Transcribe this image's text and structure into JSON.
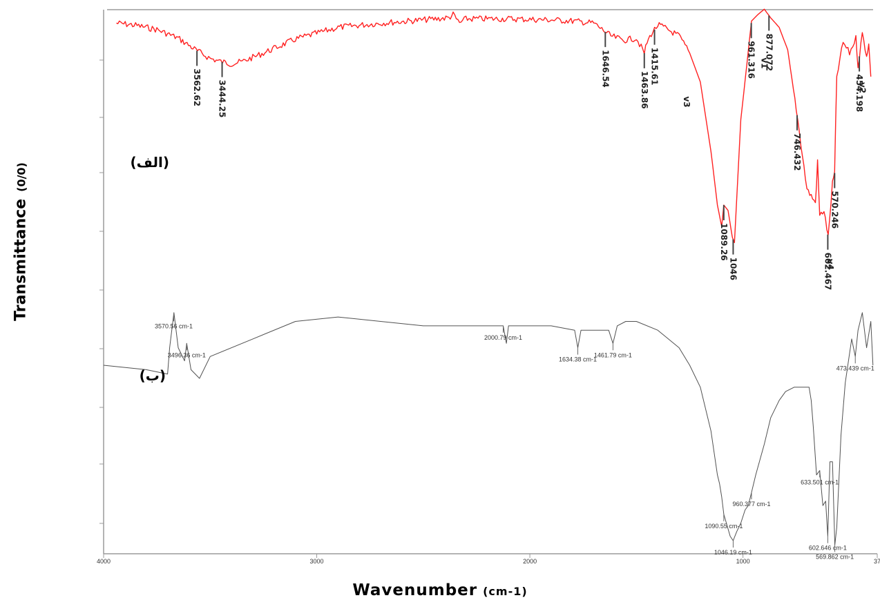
{
  "chart_data": {
    "type": "line",
    "xlabel": "Wavenumber",
    "xlabel_unit": "(cm-1)",
    "ylabel": "Transmittance",
    "ylabel_unit": "(0/0)",
    "x_reversed": true,
    "xlim": [
      4000,
      370
    ],
    "x_ticks": [
      "4000",
      "3000",
      "2000",
      "1000",
      "37"
    ],
    "series": [
      {
        "panel_label": "(الف)",
        "color": "#ff2020",
        "noisy": true,
        "x": [
          3940,
          3850,
          3750,
          3650,
          3560,
          3500,
          3450,
          3400,
          3350,
          3250,
          3100,
          2900,
          2700,
          2500,
          2380,
          2360,
          2330,
          2300,
          2100,
          1900,
          1800,
          1700,
          1647,
          1620,
          1560,
          1500,
          1463,
          1450,
          1430,
          1400,
          1380,
          1300,
          1250,
          1200,
          1150,
          1120,
          1100,
          1090,
          1070,
          1050,
          1040,
          1010,
          975,
          960,
          930,
          900,
          870,
          830,
          790,
          750,
          700,
          660,
          650,
          640,
          620,
          600,
          580,
          570,
          560,
          530,
          500,
          470,
          460,
          440,
          420,
          410,
          400
        ],
        "y": [
          10,
          12,
          16,
          24,
          36,
          43,
          46,
          48,
          46,
          38,
          25,
          14,
          10,
          7,
          5,
          2,
          10,
          6,
          6,
          7,
          8,
          10,
          18,
          22,
          26,
          24,
          38,
          28,
          20,
          12,
          13,
          22,
          38,
          65,
          130,
          180,
          200,
          180,
          185,
          210,
          215,
          100,
          36,
          8,
          2,
          -3,
          5,
          14,
          35,
          90,
          165,
          178,
          140,
          190,
          185,
          210,
          160,
          150,
          60,
          28,
          38,
          24,
          50,
          20,
          40,
          30,
          60
        ]
      },
      {
        "panel_label": "(ب)",
        "color": "#505050",
        "noisy": false,
        "x": [
          4000,
          3800,
          3700,
          3690,
          3670,
          3650,
          3620,
          3610,
          3590,
          3550,
          3500,
          3300,
          3100,
          2900,
          2700,
          2500,
          2300,
          2125,
          2110,
          2100,
          2000,
          1900,
          1790,
          1775,
          1760,
          1700,
          1630,
          1610,
          1590,
          1550,
          1500,
          1400,
          1350,
          1300,
          1250,
          1200,
          1150,
          1120,
          1110,
          1100,
          1090,
          1060,
          1046,
          1030,
          1010,
          990,
          975,
          960,
          940,
          900,
          870,
          830,
          800,
          760,
          720,
          690,
          680,
          670,
          655,
          640,
          625,
          612,
          602,
          592,
          580,
          569,
          560,
          540,
          520,
          490,
          473,
          460,
          440,
          420,
          400,
          390
        ],
        "y": [
          80,
          79,
          78,
          84,
          92,
          84,
          81,
          85,
          79,
          77,
          82,
          86,
          90,
          91,
          90,
          89,
          89,
          89,
          85,
          89,
          89,
          89,
          88,
          84,
          88,
          88,
          88,
          85,
          89,
          90,
          90,
          88,
          86,
          84,
          80,
          75,
          65,
          55,
          53,
          50,
          46,
          41,
          40,
          42,
          44,
          47,
          48,
          51,
          55,
          62,
          68,
          72,
          74,
          75,
          75,
          75,
          72,
          66,
          55,
          56,
          48,
          49,
          41,
          58,
          58,
          39,
          43,
          64,
          76,
          86,
          82,
          88,
          92,
          84,
          90,
          80
        ]
      }
    ],
    "annotations": [
      {
        "series": 0,
        "x": 3562,
        "text": "3562.62"
      },
      {
        "series": 0,
        "x": 3444,
        "text": "3444.25"
      },
      {
        "series": 0,
        "x": 1646,
        "text": "1646.54"
      },
      {
        "series": 0,
        "x": 1463,
        "text": "1463.86"
      },
      {
        "series": 0,
        "x": 1415,
        "text": "1415.61"
      },
      {
        "series": 0,
        "x": 1090,
        "text": "1089.26"
      },
      {
        "series": 0,
        "x": 1046,
        "text": "1046"
      },
      {
        "series": 0,
        "x": 961,
        "text": "961.316"
      },
      {
        "series": 0,
        "x": 878,
        "text": "877.072"
      },
      {
        "series": 0,
        "x": 746,
        "text": "746.432"
      },
      {
        "series": 0,
        "x": 602,
        "text": "602.467"
      },
      {
        "series": 0,
        "x": 570,
        "text": "570.246"
      },
      {
        "series": 0,
        "x": 454,
        "text": "454.198"
      },
      {
        "series": 0,
        "x": 1265,
        "text": "v3"
      },
      {
        "series": 0,
        "x": 900,
        "text": "v1"
      },
      {
        "series": 0,
        "x": 590,
        "text": "v4"
      },
      {
        "series": 0,
        "x": 440,
        "text": "v2"
      },
      {
        "series": 1,
        "x": 3671,
        "text": "3570.56 cm-1"
      },
      {
        "series": 1,
        "x": 3610,
        "text": "3496.36 cm-1"
      },
      {
        "series": 1,
        "x": 2125,
        "text": "2000.79 cm-1"
      },
      {
        "series": 1,
        "x": 1775,
        "text": "1634.38 cm-1"
      },
      {
        "series": 1,
        "x": 1610,
        "text": "1461.79 cm-1"
      },
      {
        "series": 1,
        "x": 1090,
        "text": "1090.55 cm-1"
      },
      {
        "series": 1,
        "x": 1046,
        "text": "1046.19 cm-1"
      },
      {
        "series": 1,
        "x": 960,
        "text": "960.377 cm-1"
      },
      {
        "series": 1,
        "x": 640,
        "text": "633.501 cm-1"
      },
      {
        "series": 1,
        "x": 602,
        "text": "602.646 cm-1"
      },
      {
        "series": 1,
        "x": 569,
        "text": "569.862 cm-1"
      },
      {
        "series": 1,
        "x": 473,
        "text": "473.439 cm-1"
      }
    ]
  }
}
